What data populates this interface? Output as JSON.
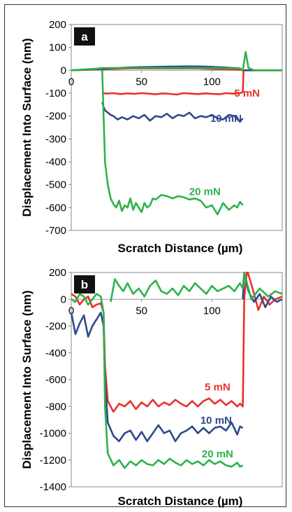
{
  "colors": {
    "red": "#e8312a",
    "blue": "#2e4a8c",
    "green": "#2eb24a",
    "label_bg": "#111111"
  },
  "chart_data": [
    {
      "type": "line",
      "panel_label": "a",
      "xlabel": "Scratch Distance (µm)",
      "ylabel": "Displacement Into Surface (nm)",
      "xlim": [
        0,
        150
      ],
      "ylim": [
        -700,
        200
      ],
      "xticks": [
        0,
        50,
        100
      ],
      "xtick_labels": [
        "0",
        "50",
        "100"
      ],
      "yticks": [
        200,
        100,
        0,
        -100,
        -200,
        -300,
        -400,
        -500,
        -600,
        -700
      ],
      "ytick_labels": [
        "200",
        "100",
        "0",
        "-100",
        "-200",
        "-300",
        "-400",
        "-500",
        "-600",
        "-700"
      ],
      "series": [
        {
          "name": "5 mN",
          "color": "#e8312a",
          "label_pos": [
            125,
            -115
          ],
          "x": [
            0,
            10,
            20,
            30,
            40,
            50,
            60,
            70,
            80,
            90,
            100,
            110,
            120,
            122,
            122.5,
            135,
            150
          ],
          "y": [
            0,
            2,
            4,
            6,
            8,
            8,
            8,
            8,
            8,
            8,
            6,
            4,
            2,
            0,
            0,
            0,
            0
          ]
        },
        {
          "name": "10 mN",
          "color": "#2e4a8c",
          "label_pos": [
            110,
            -225
          ],
          "x": [
            0,
            10,
            20,
            30,
            40,
            50,
            60,
            70,
            80,
            90,
            100,
            110,
            120,
            122,
            135,
            150
          ],
          "y": [
            0,
            3,
            6,
            9,
            12,
            14,
            15,
            16,
            17,
            17,
            15,
            12,
            8,
            0,
            0,
            0
          ]
        },
        {
          "name": "20 mN",
          "color": "#2eb24a",
          "label_pos": [
            95,
            -545
          ],
          "x": [
            0,
            5,
            10,
            15,
            20,
            22,
            40,
            60,
            80,
            100,
            120,
            122,
            124,
            126,
            130,
            150
          ],
          "y": [
            0,
            2,
            4,
            6,
            8,
            10,
            10,
            10,
            10,
            10,
            8,
            0,
            80,
            10,
            0,
            0
          ]
        },
        {
          "name": "",
          "color": "#e8312a",
          "x": [
            22,
            23,
            25,
            30,
            35,
            40,
            45,
            50,
            55,
            60,
            65,
            70,
            75,
            80,
            85,
            90,
            95,
            100,
            105,
            110,
            115,
            120,
            122,
            122.5
          ],
          "y": [
            -98,
            -100,
            -102,
            -100,
            -104,
            -101,
            -103,
            -100,
            -102,
            -105,
            -101,
            -103,
            -106,
            -100,
            -102,
            -104,
            -101,
            -103,
            -105,
            -100,
            -102,
            -100,
            -95,
            0
          ]
        },
        {
          "name": "",
          "color": "#2e4a8c",
          "x": [
            22,
            23,
            24,
            26,
            28,
            30,
            33,
            36,
            40,
            44,
            48,
            52,
            56,
            60,
            64,
            68,
            72,
            76,
            80,
            84,
            88,
            92,
            96,
            100,
            104,
            108,
            112,
            116,
            120,
            122
          ],
          "y": [
            -140,
            -160,
            -175,
            -185,
            -195,
            -200,
            -215,
            -205,
            -215,
            -200,
            -210,
            -195,
            -220,
            -200,
            -205,
            -190,
            -210,
            -195,
            -200,
            -185,
            -210,
            -200,
            -205,
            -195,
            -210,
            -215,
            -195,
            -200,
            -225,
            -210
          ]
        },
        {
          "name": "",
          "color": "#2eb24a",
          "x": [
            22,
            23,
            24,
            26,
            28,
            30,
            32,
            34,
            36,
            38,
            40,
            42,
            44,
            46,
            48,
            50,
            52,
            54,
            56,
            58,
            60,
            64,
            68,
            72,
            76,
            80,
            84,
            88,
            92,
            96,
            100,
            104,
            108,
            112,
            116,
            118,
            120,
            122
          ],
          "y": [
            0,
            -200,
            -400,
            -500,
            -560,
            -585,
            -600,
            -570,
            -615,
            -590,
            -600,
            -560,
            -610,
            -580,
            -600,
            -620,
            -580,
            -600,
            -590,
            -560,
            -565,
            -545,
            -550,
            -560,
            -550,
            -555,
            -565,
            -560,
            -570,
            -600,
            -590,
            -630,
            -580,
            -610,
            -590,
            -600,
            -575,
            -590
          ]
        }
      ]
    },
    {
      "type": "line",
      "panel_label": "b",
      "xlabel": "Scratch Distance (µm)",
      "ylabel": "Displacement Into Surface (nm)",
      "xlim": [
        0,
        150
      ],
      "ylim": [
        -1400,
        200
      ],
      "xticks": [
        0,
        50,
        100
      ],
      "xtick_labels": [
        "0",
        "50",
        "100"
      ],
      "yticks": [
        200,
        0,
        -200,
        -400,
        -600,
        -800,
        -1000,
        -1200,
        -1400
      ],
      "ytick_labels": [
        "200",
        "0",
        "-200",
        "-400",
        "-600",
        "-800",
        "-1000",
        "-1200",
        "-1400"
      ],
      "series": [
        {
          "name": "5 mN",
          "color": "#e8312a",
          "label_pos": [
            104,
            -680
          ],
          "x": [
            0,
            3,
            6,
            9,
            12,
            15,
            18,
            21,
            23,
            24,
            26,
            30,
            34,
            38,
            42,
            46,
            50,
            54,
            58,
            62,
            66,
            70,
            74,
            78,
            82,
            86,
            90,
            94,
            98,
            102,
            106,
            110,
            114,
            118,
            120,
            122,
            123,
            125,
            130,
            133,
            137,
            141,
            145,
            150
          ],
          "y": [
            40,
            20,
            -40,
            0,
            20,
            -60,
            -40,
            -30,
            -100,
            -500,
            -760,
            -840,
            -780,
            -800,
            -760,
            -820,
            -770,
            -800,
            -750,
            -800,
            -770,
            -790,
            -750,
            -780,
            -800,
            -760,
            -800,
            -760,
            -740,
            -780,
            -750,
            -790,
            -760,
            -800,
            -780,
            -800,
            0,
            220,
            40,
            -80,
            20,
            -40,
            0,
            20
          ]
        },
        {
          "name": "10 mN",
          "color": "#2e4a8c",
          "label_pos": [
            103,
            -930
          ],
          "x": [
            0,
            3,
            6,
            9,
            12,
            15,
            18,
            21,
            23,
            24,
            26,
            30,
            34,
            38,
            42,
            46,
            50,
            54,
            58,
            62,
            66,
            70,
            74,
            78,
            82,
            86,
            90,
            94,
            98,
            102,
            106,
            110,
            114,
            118,
            120,
            122
          ],
          "y": [
            -100,
            -260,
            -180,
            -120,
            -280,
            -200,
            -150,
            -100,
            -200,
            -600,
            -920,
            -1020,
            -1060,
            -1000,
            -980,
            -1050,
            -990,
            -1060,
            -1000,
            -940,
            -1000,
            -980,
            -1060,
            -1000,
            -980,
            -950,
            -1000,
            -960,
            -1000,
            -960,
            -950,
            -980,
            -920,
            -1010,
            -950,
            -960
          ]
        },
        {
          "name": "20 mN",
          "color": "#2eb24a",
          "label_pos": [
            104,
            -1180
          ],
          "x": [
            0,
            3,
            6,
            9,
            12,
            15,
            18,
            21,
            23,
            24,
            26,
            30,
            34,
            38,
            42,
            46,
            50,
            54,
            58,
            62,
            66,
            70,
            74,
            78,
            82,
            86,
            90,
            94,
            98,
            102,
            106,
            110,
            114,
            118,
            120,
            122
          ],
          "y": [
            0,
            -20,
            40,
            20,
            -40,
            0,
            40,
            20,
            -100,
            -800,
            -1150,
            -1240,
            -1200,
            -1260,
            -1210,
            -1240,
            -1200,
            -1230,
            -1240,
            -1200,
            -1230,
            -1190,
            -1220,
            -1240,
            -1200,
            -1230,
            -1210,
            -1240,
            -1200,
            -1230,
            -1210,
            -1240,
            -1250,
            -1220,
            -1250,
            -1240
          ]
        },
        {
          "name": "",
          "color": "#2e4a8c",
          "x": [
            122,
            123,
            126,
            130,
            134,
            138,
            142,
            146,
            150
          ],
          "y": [
            0,
            200,
            60,
            -20,
            40,
            -60,
            20,
            -20,
            0
          ]
        },
        {
          "name": "",
          "color": "#2eb24a",
          "x": [
            28,
            31,
            34,
            37,
            40,
            44,
            48,
            52,
            56,
            60,
            64,
            68,
            72,
            76,
            80,
            84,
            88,
            92,
            96,
            100,
            104,
            108,
            112,
            116,
            120,
            122,
            123,
            128,
            134,
            140,
            145,
            150
          ],
          "y": [
            -20,
            150,
            100,
            60,
            120,
            40,
            80,
            20,
            100,
            140,
            60,
            40,
            80,
            30,
            100,
            60,
            120,
            80,
            40,
            100,
            60,
            80,
            100,
            60,
            120,
            80,
            200,
            0,
            80,
            20,
            60,
            40
          ]
        }
      ]
    }
  ]
}
